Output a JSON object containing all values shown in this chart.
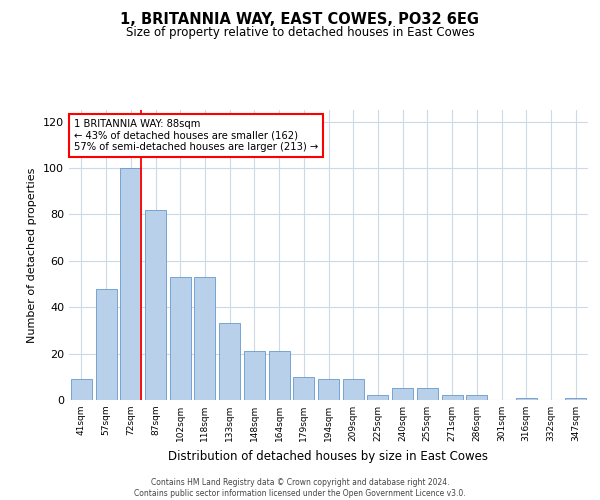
{
  "title": "1, BRITANNIA WAY, EAST COWES, PO32 6EG",
  "subtitle": "Size of property relative to detached houses in East Cowes",
  "xlabel": "Distribution of detached houses by size in East Cowes",
  "ylabel": "Number of detached properties",
  "categories": [
    "41sqm",
    "57sqm",
    "72sqm",
    "87sqm",
    "102sqm",
    "118sqm",
    "133sqm",
    "148sqm",
    "164sqm",
    "179sqm",
    "194sqm",
    "209sqm",
    "225sqm",
    "240sqm",
    "255sqm",
    "271sqm",
    "286sqm",
    "301sqm",
    "316sqm",
    "332sqm",
    "347sqm"
  ],
  "values": [
    9,
    48,
    100,
    82,
    53,
    53,
    33,
    21,
    21,
    10,
    9,
    9,
    2,
    5,
    5,
    2,
    2,
    0,
    1,
    0,
    1
  ],
  "bar_color": "#b8d0ea",
  "bar_edge_color": "#6699cc",
  "red_line_index": 2,
  "annotation_line1": "1 BRITANNIA WAY: 88sqm",
  "annotation_line2": "← 43% of detached houses are smaller (162)",
  "annotation_line3": "57% of semi-detached houses are larger (213) →",
  "ylim": [
    0,
    125
  ],
  "yticks": [
    0,
    20,
    40,
    60,
    80,
    100,
    120
  ],
  "grid_color": "#ccd9e8",
  "footer_line1": "Contains HM Land Registry data © Crown copyright and database right 2024.",
  "footer_line2": "Contains public sector information licensed under the Open Government Licence v3.0."
}
